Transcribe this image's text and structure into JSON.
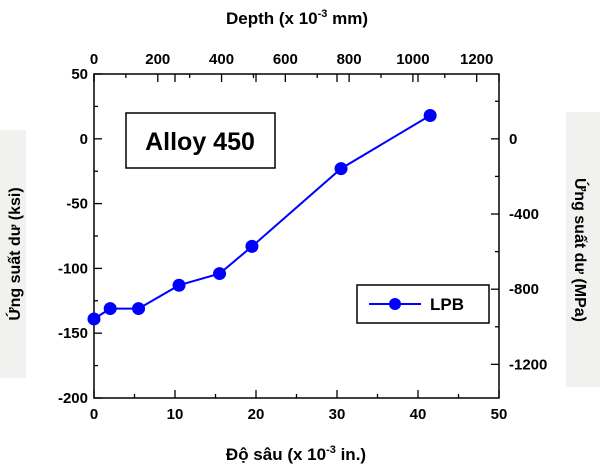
{
  "chart_data": {
    "type": "line",
    "annotation": "Alloy 450",
    "xlabel": "Độ sâu (x 10",
    "xlabel_exp": "-3",
    "xlabel_suffix": " in.)",
    "x2label": "Depth (x 10",
    "x2label_exp": "-3",
    "x2label_suffix": " mm)",
    "ylabel": "Ứng suất dư (ksi)",
    "y2label": "Ứng suất dư (MPa)",
    "xlim": [
      0,
      50
    ],
    "ylim": [
      -200,
      50
    ],
    "x2lim": [
      0,
      1270
    ],
    "y2lim": [
      -1379,
      345
    ],
    "xticks": [
      0,
      10,
      20,
      30,
      40,
      50
    ],
    "yticks": [
      -200,
      -150,
      -100,
      -50,
      0,
      50
    ],
    "x2ticks": [
      0,
      200,
      400,
      600,
      800,
      1000,
      1200
    ],
    "y2ticks": [
      -1200,
      -800,
      -400,
      0
    ],
    "series": [
      {
        "name": "LPB",
        "color": "#0000ff",
        "marker": "circle",
        "x": [
          0,
          2,
          5.5,
          10.5,
          15.5,
          19.5,
          30.5,
          41.5
        ],
        "y": [
          -139,
          -131,
          -131,
          -113,
          -104,
          -83,
          -23,
          18
        ]
      }
    ],
    "legend": "inside-lower-right",
    "grid": false
  }
}
